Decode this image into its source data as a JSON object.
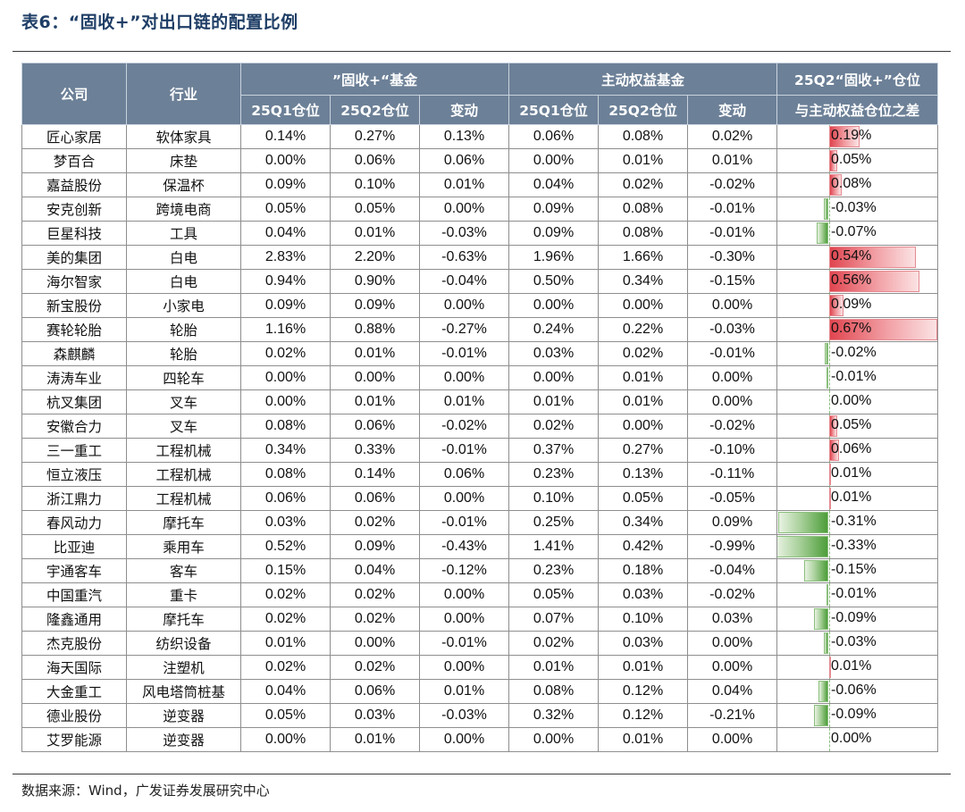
{
  "title": "表6：“固收+”对出口链的配置比例",
  "source": "数据来源：Wind，广发证券发展研究中心",
  "colors": {
    "header_bg": "#6c8097",
    "title": "#1f3e66",
    "positive_bar": "#e0454f",
    "negative_bar": "#4d9e3a"
  },
  "headers": {
    "company": "公司",
    "industry": "行业",
    "fixed_plus_group": "”固收+“基金",
    "active_group": "主动权益基金",
    "diff_line1": "25Q2“固收+”仓位",
    "diff_line2": "与主动权益仓位之差",
    "sub": [
      "25Q1仓位",
      "25Q2仓位",
      "变动",
      "25Q1仓位",
      "25Q2仓位",
      "变动"
    ]
  },
  "rows": [
    {
      "company": "匠心家居",
      "industry": "软体家具",
      "fq1": "0.14%",
      "fq2": "0.27%",
      "fchg": "0.13%",
      "aq1": "0.06%",
      "aq2": "0.08%",
      "achg": "0.02%",
      "diff": "0.19%",
      "diff_value": 0.19
    },
    {
      "company": "梦百合",
      "industry": "床垫",
      "fq1": "0.00%",
      "fq2": "0.06%",
      "fchg": "0.06%",
      "aq1": "0.00%",
      "aq2": "0.01%",
      "achg": "0.01%",
      "diff": "0.05%",
      "diff_value": 0.05
    },
    {
      "company": "嘉益股份",
      "industry": "保温杯",
      "fq1": "0.09%",
      "fq2": "0.10%",
      "fchg": "0.01%",
      "aq1": "0.04%",
      "aq2": "0.02%",
      "achg": "-0.02%",
      "diff": "0.08%",
      "diff_value": 0.08
    },
    {
      "company": "安克创新",
      "industry": "跨境电商",
      "fq1": "0.05%",
      "fq2": "0.05%",
      "fchg": "0.00%",
      "aq1": "0.09%",
      "aq2": "0.08%",
      "achg": "-0.01%",
      "diff": "-0.03%",
      "diff_value": -0.03
    },
    {
      "company": "巨星科技",
      "industry": "工具",
      "fq1": "0.04%",
      "fq2": "0.01%",
      "fchg": "-0.03%",
      "aq1": "0.09%",
      "aq2": "0.08%",
      "achg": "-0.01%",
      "diff": "-0.07%",
      "diff_value": -0.07
    },
    {
      "company": "美的集团",
      "industry": "白电",
      "fq1": "2.83%",
      "fq2": "2.20%",
      "fchg": "-0.63%",
      "aq1": "1.96%",
      "aq2": "1.66%",
      "achg": "-0.30%",
      "diff": "0.54%",
      "diff_value": 0.54
    },
    {
      "company": "海尔智家",
      "industry": "白电",
      "fq1": "0.94%",
      "fq2": "0.90%",
      "fchg": "-0.04%",
      "aq1": "0.50%",
      "aq2": "0.34%",
      "achg": "-0.15%",
      "diff": "0.56%",
      "diff_value": 0.56
    },
    {
      "company": "新宝股份",
      "industry": "小家电",
      "fq1": "0.09%",
      "fq2": "0.09%",
      "fchg": "0.00%",
      "aq1": "0.00%",
      "aq2": "0.00%",
      "achg": "0.00%",
      "diff": "0.09%",
      "diff_value": 0.09
    },
    {
      "company": "赛轮轮胎",
      "industry": "轮胎",
      "fq1": "1.16%",
      "fq2": "0.88%",
      "fchg": "-0.27%",
      "aq1": "0.24%",
      "aq2": "0.22%",
      "achg": "-0.03%",
      "diff": "0.67%",
      "diff_value": 0.67
    },
    {
      "company": "森麒麟",
      "industry": "轮胎",
      "fq1": "0.02%",
      "fq2": "0.01%",
      "fchg": "-0.01%",
      "aq1": "0.03%",
      "aq2": "0.02%",
      "achg": "-0.01%",
      "diff": "-0.02%",
      "diff_value": -0.02
    },
    {
      "company": "涛涛车业",
      "industry": "四轮车",
      "fq1": "0.00%",
      "fq2": "0.00%",
      "fchg": "0.00%",
      "aq1": "0.00%",
      "aq2": "0.01%",
      "achg": "0.00%",
      "diff": "-0.01%",
      "diff_value": -0.01
    },
    {
      "company": "杭叉集团",
      "industry": "叉车",
      "fq1": "0.00%",
      "fq2": "0.01%",
      "fchg": "0.01%",
      "aq1": "0.01%",
      "aq2": "0.01%",
      "achg": "0.00%",
      "diff": "0.00%",
      "diff_value": 0.0
    },
    {
      "company": "安徽合力",
      "industry": "叉车",
      "fq1": "0.08%",
      "fq2": "0.06%",
      "fchg": "-0.02%",
      "aq1": "0.02%",
      "aq2": "0.00%",
      "achg": "-0.02%",
      "diff": "0.05%",
      "diff_value": 0.05
    },
    {
      "company": "三一重工",
      "industry": "工程机械",
      "fq1": "0.34%",
      "fq2": "0.33%",
      "fchg": "-0.01%",
      "aq1": "0.37%",
      "aq2": "0.27%",
      "achg": "-0.10%",
      "diff": "0.06%",
      "diff_value": 0.06
    },
    {
      "company": "恒立液压",
      "industry": "工程机械",
      "fq1": "0.08%",
      "fq2": "0.14%",
      "fchg": "0.06%",
      "aq1": "0.23%",
      "aq2": "0.13%",
      "achg": "-0.11%",
      "diff": "0.01%",
      "diff_value": 0.01
    },
    {
      "company": "浙江鼎力",
      "industry": "工程机械",
      "fq1": "0.06%",
      "fq2": "0.06%",
      "fchg": "0.00%",
      "aq1": "0.10%",
      "aq2": "0.05%",
      "achg": "-0.05%",
      "diff": "0.01%",
      "diff_value": 0.01
    },
    {
      "company": "春风动力",
      "industry": "摩托车",
      "fq1": "0.03%",
      "fq2": "0.02%",
      "fchg": "-0.01%",
      "aq1": "0.25%",
      "aq2": "0.34%",
      "achg": "0.09%",
      "diff": "-0.31%",
      "diff_value": -0.31
    },
    {
      "company": "比亚迪",
      "industry": "乘用车",
      "fq1": "0.52%",
      "fq2": "0.09%",
      "fchg": "-0.43%",
      "aq1": "1.41%",
      "aq2": "0.42%",
      "achg": "-0.99%",
      "diff": "-0.33%",
      "diff_value": -0.33
    },
    {
      "company": "宇通客车",
      "industry": "客车",
      "fq1": "0.15%",
      "fq2": "0.04%",
      "fchg": "-0.12%",
      "aq1": "0.23%",
      "aq2": "0.18%",
      "achg": "-0.04%",
      "diff": "-0.15%",
      "diff_value": -0.15
    },
    {
      "company": "中国重汽",
      "industry": "重卡",
      "fq1": "0.02%",
      "fq2": "0.02%",
      "fchg": "0.00%",
      "aq1": "0.05%",
      "aq2": "0.03%",
      "achg": "-0.02%",
      "diff": "-0.01%",
      "diff_value": -0.01
    },
    {
      "company": "隆鑫通用",
      "industry": "摩托车",
      "fq1": "0.02%",
      "fq2": "0.02%",
      "fchg": "0.00%",
      "aq1": "0.07%",
      "aq2": "0.10%",
      "achg": "0.03%",
      "diff": "-0.09%",
      "diff_value": -0.09
    },
    {
      "company": "杰克股份",
      "industry": "纺织设备",
      "fq1": "0.01%",
      "fq2": "0.00%",
      "fchg": "-0.01%",
      "aq1": "0.02%",
      "aq2": "0.03%",
      "achg": "0.00%",
      "diff": "-0.03%",
      "diff_value": -0.03
    },
    {
      "company": "海天国际",
      "industry": "注塑机",
      "fq1": "0.02%",
      "fq2": "0.02%",
      "fchg": "0.00%",
      "aq1": "0.01%",
      "aq2": "0.01%",
      "achg": "0.00%",
      "diff": "0.01%",
      "diff_value": 0.01
    },
    {
      "company": "大金重工",
      "industry": "风电塔筒桩基",
      "fq1": "0.04%",
      "fq2": "0.06%",
      "fchg": "0.01%",
      "aq1": "0.08%",
      "aq2": "0.12%",
      "achg": "0.04%",
      "diff": "-0.06%",
      "diff_value": -0.06
    },
    {
      "company": "德业股份",
      "industry": "逆变器",
      "fq1": "0.05%",
      "fq2": "0.03%",
      "fchg": "-0.03%",
      "aq1": "0.32%",
      "aq2": "0.12%",
      "achg": "-0.21%",
      "diff": "-0.09%",
      "diff_value": -0.09
    },
    {
      "company": "艾罗能源",
      "industry": "逆变器",
      "fq1": "0.00%",
      "fq2": "0.01%",
      "fchg": "0.00%",
      "aq1": "0.00%",
      "aq2": "0.01%",
      "achg": "0.00%",
      "diff": "0.00%",
      "diff_value": 0.0
    }
  ]
}
